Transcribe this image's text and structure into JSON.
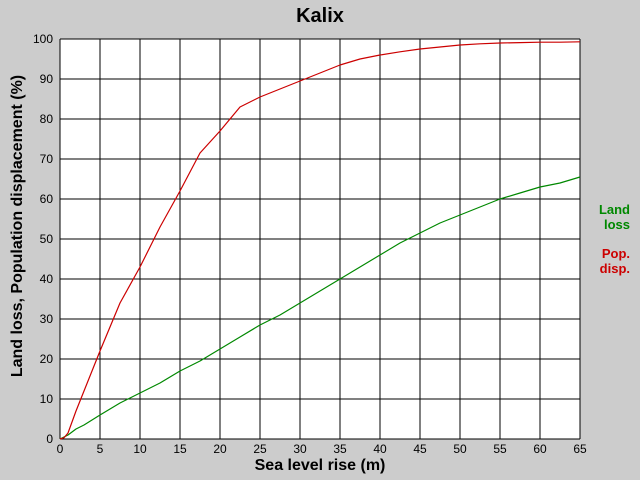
{
  "chart_data": {
    "type": "line",
    "title": "Kalix",
    "xlabel": "Sea level rise (m)",
    "ylabel": "Land loss, Population displacement (%)",
    "xlim": [
      0,
      65
    ],
    "ylim": [
      0,
      100
    ],
    "xticks": [
      0,
      5,
      10,
      15,
      20,
      25,
      30,
      35,
      40,
      45,
      50,
      55,
      60,
      65
    ],
    "yticks": [
      0,
      10,
      20,
      30,
      40,
      50,
      60,
      70,
      80,
      90,
      100
    ],
    "grid": true,
    "legend_position": "right",
    "series": [
      {
        "name_lines": [
          "Land",
          "loss"
        ],
        "color": "#008800",
        "x": [
          0,
          1,
          2,
          3,
          5,
          7.5,
          10,
          12.5,
          15,
          17.5,
          20,
          22.5,
          25,
          27.5,
          30,
          32.5,
          35,
          37.5,
          40,
          42.5,
          45,
          47.5,
          50,
          52.5,
          55,
          57.5,
          60,
          62.5,
          65
        ],
        "y": [
          0,
          1,
          2.5,
          3.5,
          6,
          9,
          11.5,
          14,
          17,
          19.5,
          22.5,
          25.5,
          28.5,
          31,
          34,
          37,
          40,
          43,
          46,
          49,
          51.5,
          54,
          56,
          58,
          60,
          61.5,
          63,
          64,
          65.5
        ]
      },
      {
        "name_lines": [
          "Pop.",
          "disp."
        ],
        "color": "#cc0000",
        "x": [
          0,
          0.5,
          1,
          2,
          3,
          4,
          5,
          7.5,
          10,
          12.5,
          15,
          17.5,
          20,
          22.5,
          25,
          27.5,
          30,
          32.5,
          35,
          37.5,
          40,
          42.5,
          45,
          47.5,
          50,
          52.5,
          55,
          57.5,
          60,
          62.5,
          65
        ],
        "y": [
          0,
          0.3,
          1.5,
          7,
          12,
          17,
          22,
          34,
          43,
          53,
          62,
          71.5,
          77,
          83,
          85.5,
          87.5,
          89.5,
          91.5,
          93.5,
          95,
          96,
          96.8,
          97.5,
          98,
          98.5,
          98.8,
          99,
          99.1,
          99.2,
          99.2,
          99.3
        ]
      }
    ]
  },
  "colors": {
    "background": "#cccccc",
    "plot_background": "#ffffff",
    "grid": "#000000"
  }
}
